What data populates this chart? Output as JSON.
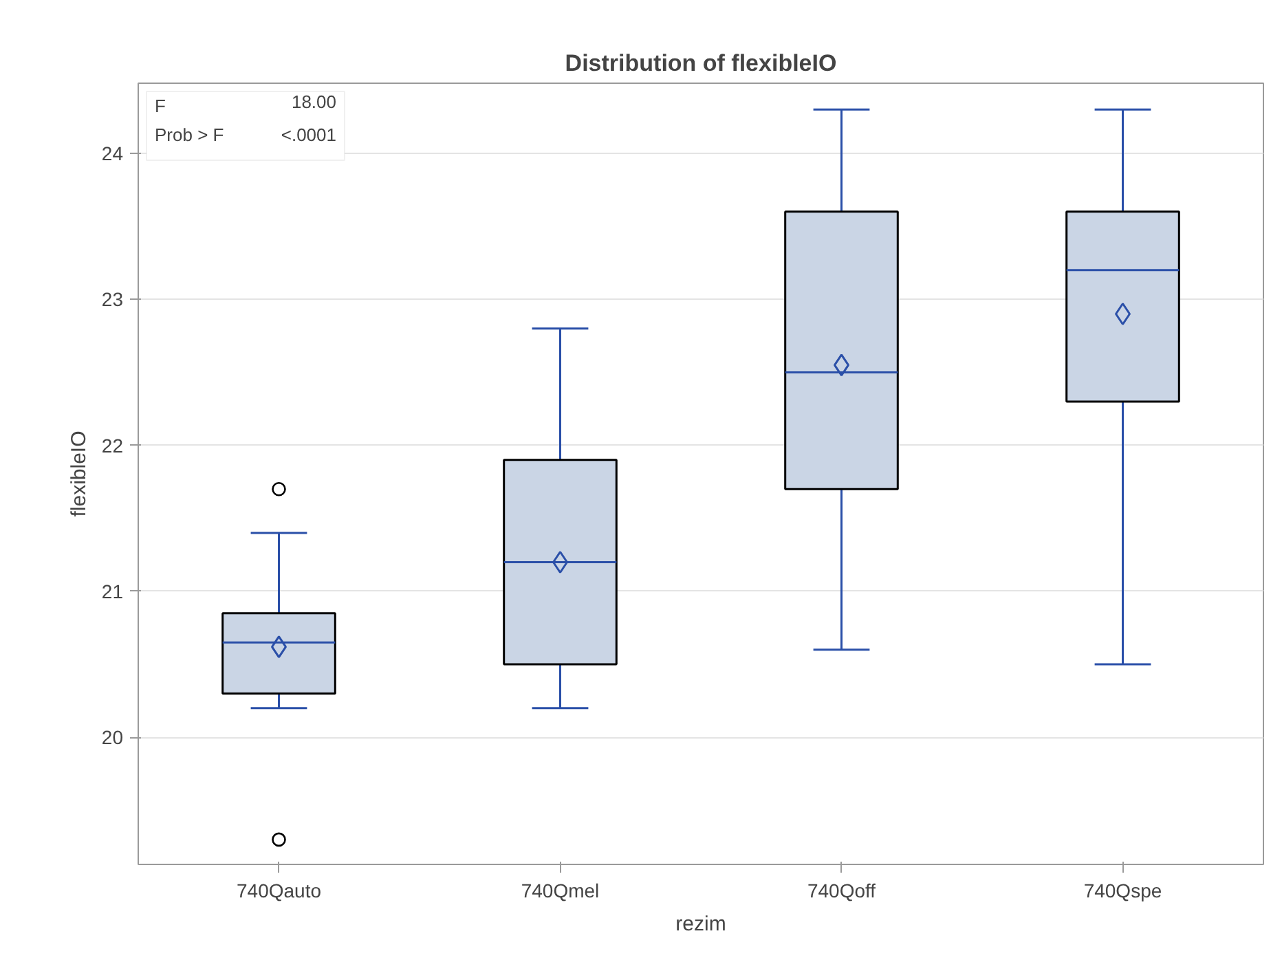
{
  "chart_data": {
    "type": "box",
    "title": "Distribution of flexibleIO",
    "xlabel": "rezim",
    "ylabel": "flexibleIO",
    "categories": [
      "740Qauto",
      "740Qmel",
      "740Qoff",
      "740Qspe"
    ],
    "boxes": [
      {
        "low": 20.2,
        "q1": 20.3,
        "median": 20.65,
        "q3": 20.85,
        "high": 21.4,
        "mean": 20.62,
        "outliers": [
          21.7,
          19.3
        ]
      },
      {
        "low": 20.2,
        "q1": 20.5,
        "median": 21.2,
        "q3": 21.9,
        "high": 22.8,
        "mean": 21.2
      },
      {
        "low": 20.6,
        "q1": 21.7,
        "median": 22.5,
        "q3": 23.6,
        "high": 24.3,
        "mean": 22.55
      },
      {
        "low": 20.5,
        "q1": 22.3,
        "median": 23.2,
        "q3": 23.6,
        "high": 24.3,
        "mean": 22.9
      }
    ],
    "color": "#cad5e5",
    "ylim": [
      19.13,
      24.48
    ],
    "yticks": [
      20,
      21,
      22,
      23,
      24
    ],
    "grid": "y",
    "marker": "diamond",
    "annotations": [
      "F",
      "18.00",
      "Prob > F",
      "<.0001"
    ]
  }
}
